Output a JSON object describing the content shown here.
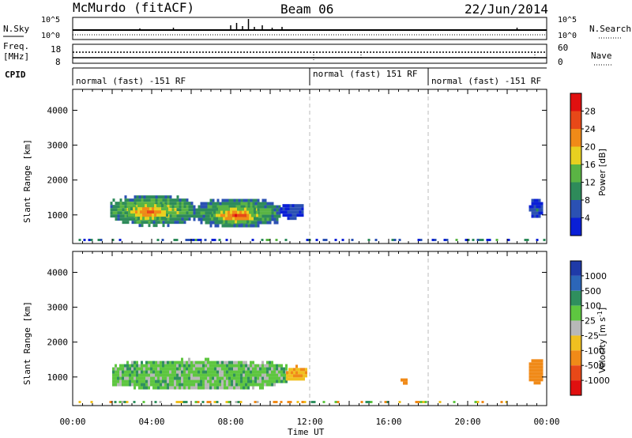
{
  "header": {
    "station": "McMurdo (fitACF)",
    "beam": "Beam 06",
    "date": "22/Jun/2014"
  },
  "noise_panel": {
    "left_label": "N.Sky",
    "right_label": "N.Search",
    "left_ticks": [
      "10^5",
      "10^0"
    ],
    "right_ticks": [
      "10^5",
      "10^0"
    ]
  },
  "freq_panel": {
    "left_label_1": "Freq.",
    "left_label_2": "[MHz]",
    "left_ticks": [
      "18",
      "8"
    ],
    "right_label": "Nave",
    "right_ticks": [
      "60",
      "0"
    ]
  },
  "cpid_panel": {
    "label": "CPID",
    "segments": [
      {
        "start": 0.83,
        "end": 12.0,
        "text": "normal (fast) -151 RF"
      },
      {
        "start": 12.0,
        "end": 18.0,
        "text": "normal (fast) 151 RF"
      },
      {
        "start": 18.0,
        "end": 24.0,
        "text": "normal (fast) -151 RF"
      }
    ]
  },
  "x_axis": {
    "ticks": [
      "00:00",
      "04:00",
      "08:00",
      "12:00",
      "16:00",
      "20:00",
      "00:00"
    ],
    "label": "Time UT"
  },
  "power_panel": {
    "ylabel": "Slant Range [km]",
    "yticks": [
      "1000",
      "2000",
      "3000",
      "4000"
    ],
    "colorbar_label": "Power [dB]",
    "colorbar_ticks": [
      "4",
      "8",
      "12",
      "16",
      "20",
      "24",
      "28"
    ],
    "colors": [
      "#0a1fd6",
      "#2b51b3",
      "#2e8b5a",
      "#5ab444",
      "#e8d020",
      "#f08a18",
      "#e84818",
      "#e01010"
    ]
  },
  "velocity_panel": {
    "ylabel": "Slant Range [km]",
    "yticks": [
      "1000",
      "2000",
      "3000",
      "4000"
    ],
    "colorbar_label": "Velocity [m s^-1]",
    "colorbar_ticks": [
      "1000",
      "500",
      "100",
      "25",
      "-25",
      "-100",
      "-500",
      "-1000"
    ],
    "colors": [
      "#1f3aa8",
      "#2c66b8",
      "#2f8f5e",
      "#5ec640",
      "#b8b8b8",
      "#f0c020",
      "#f08a18",
      "#e84818",
      "#e01010"
    ]
  },
  "chart_data": [
    {
      "type": "heatmap",
      "title": "",
      "xlabel": "Time UT",
      "ylabel": "Slant Range [km]",
      "xlim": [
        0,
        24
      ],
      "ylim": [
        180,
        4600
      ],
      "colorbar": "Power [dB]",
      "colorbar_range": [
        0,
        30
      ],
      "regions": [
        {
          "x_range": [
            1.9,
            6.1
          ],
          "y_range": [
            700,
            1650
          ],
          "value": 20
        },
        {
          "x_range": [
            2.8,
            4.8
          ],
          "y_range": [
            850,
            1400
          ],
          "value": 28
        },
        {
          "x_range": [
            6.1,
            10.5
          ],
          "y_range": [
            650,
            1550
          ],
          "value": 18
        },
        {
          "x_range": [
            7.0,
            9.4
          ],
          "y_range": [
            750,
            1300
          ],
          "value": 27
        },
        {
          "x_range": [
            10.5,
            11.7
          ],
          "y_range": [
            900,
            1400
          ],
          "value": 6
        },
        {
          "x_range": [
            23.1,
            23.8
          ],
          "y_range": [
            900,
            1550
          ],
          "value": 6
        }
      ]
    },
    {
      "type": "heatmap",
      "title": "",
      "xlabel": "Time UT",
      "ylabel": "Slant Range [km]",
      "xlim": [
        0,
        24
      ],
      "ylim": [
        180,
        4600
      ],
      "colorbar": "Velocity [m s^-1]",
      "regions": [
        {
          "x_range": [
            2.0,
            10.8
          ],
          "y_range": [
            650,
            1550
          ],
          "value": 60
        },
        {
          "x_range": [
            10.8,
            11.8
          ],
          "y_range": [
            900,
            1350
          ],
          "value": -100
        },
        {
          "x_range": [
            16.6,
            16.9
          ],
          "y_range": [
            850,
            1050
          ],
          "value": -300
        },
        {
          "x_range": [
            23.1,
            23.8
          ],
          "y_range": [
            800,
            1600
          ],
          "value": -200
        }
      ]
    }
  ]
}
